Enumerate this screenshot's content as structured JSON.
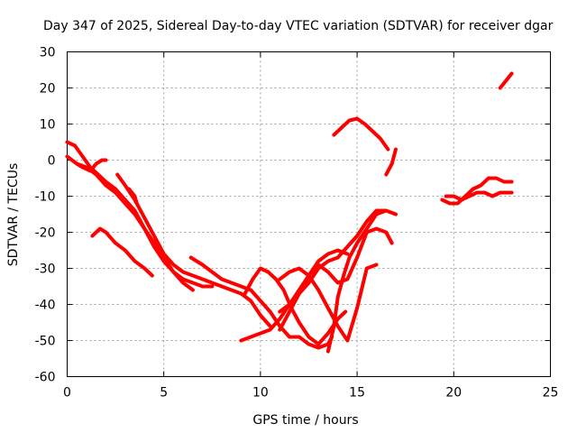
{
  "chart_data": {
    "type": "line",
    "title": "Day 347 of 2025, Sidereal Day-to-day VTEC variation (SDTVAR) for receiver dgar",
    "xlabel": "GPS time / hours",
    "ylabel": "SDTVAR / TECUs",
    "xlim": [
      0,
      25
    ],
    "ylim": [
      -60,
      30
    ],
    "xticks": [
      0,
      5,
      10,
      15,
      20,
      25
    ],
    "yticks": [
      30,
      20,
      10,
      0,
      -10,
      -20,
      -30,
      -40,
      -50,
      -60
    ],
    "grid": true,
    "color": "#ff0000",
    "series": [
      {
        "name": "track-1",
        "x": [
          0.0,
          0.4,
          0.8,
          1.2,
          1.6,
          2.0,
          2.5,
          3.0,
          3.5,
          4.0,
          4.5,
          5.0,
          5.5,
          6.0,
          6.5,
          7.0,
          7.5
        ],
        "y": [
          5,
          4,
          1,
          -2,
          -4,
          -6,
          -8,
          -11,
          -14,
          -19,
          -24,
          -28,
          -31,
          -33,
          -34,
          -35,
          -35
        ]
      },
      {
        "name": "track-2",
        "x": [
          0.0,
          0.5,
          1.0,
          1.5,
          2.0,
          2.5,
          3.0,
          3.5,
          4.0,
          4.5,
          5.0,
          5.5,
          6.0,
          6.5
        ],
        "y": [
          1,
          -1,
          -2,
          -4,
          -7,
          -9,
          -12,
          -15,
          -19,
          -23,
          -27,
          -31,
          -34,
          -36
        ]
      },
      {
        "name": "track-3",
        "x": [
          0.5,
          0.8,
          1.2,
          1.5,
          1.8,
          2.0
        ],
        "y": [
          -1,
          -2,
          -3,
          -1,
          0,
          0
        ]
      },
      {
        "name": "track-4",
        "x": [
          2.6,
          3.0,
          3.5,
          4.0,
          4.5,
          5.0,
          5.5,
          6.0,
          6.5,
          7.0,
          7.5,
          8.0,
          8.5,
          9.0,
          9.5,
          10.0,
          10.5
        ],
        "y": [
          -4,
          -7,
          -11,
          -16,
          -21,
          -26,
          -29,
          -31,
          -32,
          -33,
          -34,
          -35,
          -36,
          -37,
          -39,
          -43,
          -46
        ]
      },
      {
        "name": "track-5",
        "x": [
          3.2,
          3.5,
          3.6
        ],
        "y": [
          -8,
          -10,
          -12
        ]
      },
      {
        "name": "track-6",
        "x": [
          1.3,
          1.7,
          2.0,
          2.5,
          3.0,
          3.5,
          4.0,
          4.4
        ],
        "y": [
          -21,
          -19,
          -20,
          -23,
          -25,
          -28,
          -30,
          -32
        ]
      },
      {
        "name": "track-7",
        "x": [
          6.4,
          7.0,
          7.5,
          8.0,
          8.5,
          9.0,
          9.5,
          10.0,
          10.5,
          11.0,
          11.5,
          12.0,
          12.5,
          13.0,
          13.5,
          13.7
        ],
        "y": [
          -27,
          -29,
          -31,
          -33,
          -34,
          -35,
          -36,
          -39,
          -42,
          -46,
          -49,
          -49,
          -51,
          -52,
          -51,
          -49
        ]
      },
      {
        "name": "track-8",
        "x": [
          9.0,
          9.5,
          10.0,
          10.5,
          11.0,
          11.5,
          12.0,
          12.5,
          13.0,
          13.5,
          14.0,
          14.5
        ],
        "y": [
          -50,
          -49,
          -48,
          -47,
          -44,
          -40,
          -36,
          -32,
          -28,
          -26,
          -25,
          -26
        ]
      },
      {
        "name": "track-9",
        "x": [
          9.2,
          9.6,
          10.0,
          10.4,
          10.8,
          11.2,
          11.6,
          12.0,
          12.5,
          13.0,
          13.5,
          14.0,
          14.4
        ],
        "y": [
          -37,
          -33,
          -30,
          -31,
          -33,
          -36,
          -41,
          -45,
          -49,
          -51,
          -48,
          -44,
          -42
        ]
      },
      {
        "name": "track-10",
        "x": [
          11.0,
          11.5,
          12.0,
          12.5,
          13.0,
          13.5,
          14.0,
          14.5,
          15.0,
          15.5,
          16.0,
          16.5,
          16.8
        ],
        "y": [
          -47,
          -42,
          -37,
          -32,
          -29,
          -31,
          -34,
          -33,
          -27,
          -20,
          -19,
          -20,
          -23
        ]
      },
      {
        "name": "track-11",
        "x": [
          11.0,
          11.5,
          12.0,
          12.5,
          13.0,
          13.5,
          14.0,
          14.5,
          15.0,
          15.5,
          16.0
        ],
        "y": [
          -33,
          -31,
          -30,
          -32,
          -36,
          -41,
          -46,
          -50,
          -41,
          -30,
          -29
        ]
      },
      {
        "name": "track-12",
        "x": [
          13.5,
          13.8,
          14.0,
          14.3,
          14.6,
          15.0,
          15.5,
          16.0,
          16.5,
          17.0
        ],
        "y": [
          -53,
          -46,
          -38,
          -32,
          -27,
          -23,
          -19,
          -15,
          -14,
          -15
        ]
      },
      {
        "name": "track-13",
        "x": [
          11.0,
          11.5,
          12.0,
          12.5,
          13.0,
          13.5,
          14.0,
          14.5,
          15.0,
          15.5,
          16.0,
          16.5
        ],
        "y": [
          -42,
          -40,
          -37,
          -34,
          -30,
          -28,
          -27,
          -24,
          -21,
          -17,
          -14,
          -14
        ]
      },
      {
        "name": "track-14",
        "x": [
          13.8,
          14.2,
          14.6,
          15.0,
          15.4,
          15.8,
          16.2,
          16.6
        ],
        "y": [
          7,
          9,
          11,
          11.5,
          10,
          8,
          6,
          3
        ]
      },
      {
        "name": "track-15",
        "x": [
          16.5,
          16.8,
          17.0
        ],
        "y": [
          -4,
          -1,
          3
        ]
      },
      {
        "name": "track-16",
        "x": [
          19.4,
          19.8,
          20.2,
          20.6,
          21.0,
          21.4,
          21.8,
          22.2,
          22.6,
          23.0
        ],
        "y": [
          -11,
          -12,
          -12,
          -10,
          -8,
          -7,
          -5,
          -5,
          -6,
          -6
        ]
      },
      {
        "name": "track-17",
        "x": [
          19.6,
          20.0,
          20.4,
          20.8,
          21.2,
          21.6,
          22.0,
          22.4,
          22.8,
          23.0
        ],
        "y": [
          -10,
          -10,
          -11,
          -10,
          -9,
          -9,
          -10,
          -9,
          -9,
          -9
        ]
      },
      {
        "name": "track-18",
        "x": [
          22.4,
          22.7,
          23.0
        ],
        "y": [
          20,
          22,
          24
        ]
      }
    ]
  }
}
